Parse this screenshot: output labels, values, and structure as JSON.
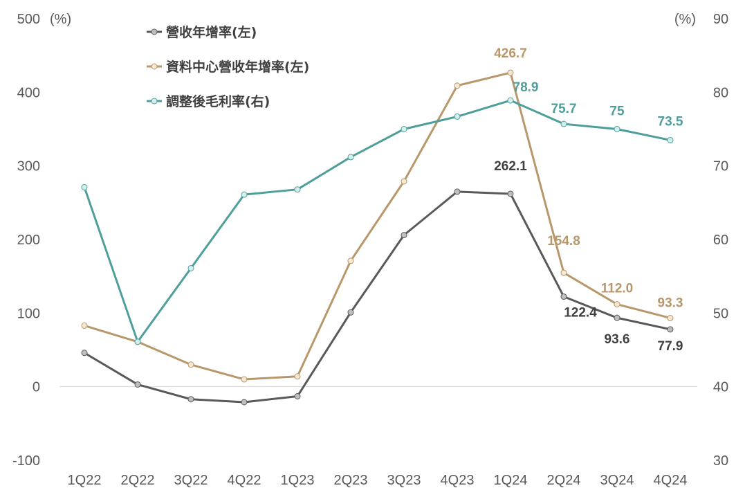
{
  "chart_data": {
    "type": "line",
    "title": "",
    "categories": [
      "1Q22",
      "2Q22",
      "3Q22",
      "4Q22",
      "1Q23",
      "2Q23",
      "3Q23",
      "4Q23",
      "1Q24",
      "2Q24",
      "3Q24",
      "4Q24"
    ],
    "y_left": {
      "label": "(%)",
      "lim": [
        -100,
        500
      ],
      "ticks": [
        -100,
        0,
        100,
        200,
        300,
        400,
        500
      ]
    },
    "y_right": {
      "label": "(%)",
      "lim": [
        30,
        90
      ],
      "ticks": [
        30,
        40,
        50,
        60,
        70,
        80,
        90
      ]
    },
    "grid": false,
    "legend_position": "top-left",
    "series": [
      {
        "name": "營收年增率(左)",
        "axis": "left",
        "color": "#595959",
        "marker_fill": "#bfbfbf",
        "values": [
          46,
          3,
          -17,
          -21,
          -13,
          101,
          206,
          265,
          262.1,
          122.4,
          93.6,
          77.9
        ],
        "labels": [
          null,
          null,
          null,
          null,
          null,
          null,
          null,
          null,
          "262.1",
          "122.4",
          "93.6",
          "77.9"
        ]
      },
      {
        "name": "資料中心營收年增率(左)",
        "axis": "left",
        "color": "#b8976a",
        "marker_fill": "#f5e9d3",
        "values": [
          83,
          61,
          30,
          10,
          14,
          171,
          279,
          409,
          426.7,
          154.8,
          112.0,
          93.3
        ],
        "labels": [
          null,
          null,
          null,
          null,
          null,
          null,
          null,
          null,
          "426.7",
          "154.8",
          "112.0",
          "93.3"
        ]
      },
      {
        "name": "調整後毛利率(右)",
        "axis": "right",
        "color": "#4e9f9b",
        "marker_fill": "#d6efee",
        "values": [
          67.1,
          46.1,
          56.1,
          66.1,
          66.8,
          71.2,
          75.0,
          76.7,
          78.9,
          75.7,
          75,
          73.5
        ],
        "labels": [
          null,
          null,
          null,
          null,
          null,
          null,
          null,
          null,
          "78.9",
          "75.7",
          "75",
          "73.5"
        ]
      }
    ]
  }
}
